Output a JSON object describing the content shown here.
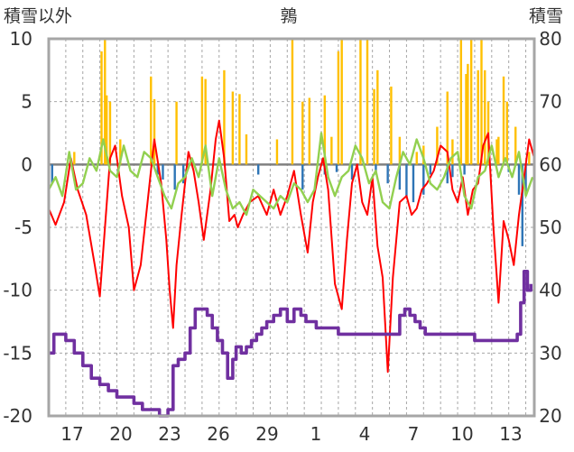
{
  "chart_data": {
    "type": "line",
    "title": "鶉",
    "left_axis": {
      "label": "積雪以外",
      "ticks": [
        10,
        5,
        0,
        -5,
        -10,
        -15,
        -20
      ],
      "ylim": [
        -20,
        10
      ]
    },
    "right_axis": {
      "label": "積雪",
      "ticks": [
        80,
        70,
        60,
        50,
        40,
        30,
        20
      ],
      "ylim": [
        20,
        80
      ]
    },
    "x_tick_labels": [
      "17",
      "20",
      "23",
      "26",
      "29",
      "1",
      "4",
      "7",
      "10",
      "13"
    ],
    "grid": true,
    "colors": {
      "precip_orange": "#FFC000",
      "precip_blue": "#2E75B6",
      "temp_red": "#FF0000",
      "temp_green": "#92D050",
      "snow_purple": "#7030A0",
      "zero_line": "#808080",
      "grid": "#A6A6A6",
      "frame": "#A6A6A6"
    },
    "series": [
      {
        "key": "precip_up",
        "axis": "left",
        "style": "bars-up",
        "x": [
          16.5,
          18.1,
          18.3,
          18.4,
          18.6,
          19.2,
          21.0,
          21.2,
          22.5,
          24.0,
          24.2,
          25.3,
          25.8,
          26.2,
          26.6,
          28.4,
          29.3,
          29.9,
          30.3,
          31.2,
          31.6,
          32.0,
          32.2,
          33.3,
          33.7,
          34.1,
          34.3,
          35.1,
          35.6,
          36.6,
          37.0,
          37.8,
          38.4,
          38.7,
          39.2,
          39.5,
          39.6,
          39.8,
          40.2,
          40.4,
          40.6,
          40.8,
          41.3,
          41.4,
          41.7,
          41.9,
          42.4,
          43.2
        ],
        "y": [
          1.0,
          9.0,
          10.0,
          5.5,
          5.0,
          2.0,
          7.0,
          5.2,
          5.0,
          7.0,
          6.8,
          7.5,
          5.8,
          5.6,
          2.4,
          2.0,
          10.0,
          5.0,
          5.3,
          5.5,
          2.2,
          9.0,
          10.0,
          10.0,
          10.0,
          6.0,
          7.5,
          6.2,
          2.2,
          1.0,
          1.5,
          3.0,
          5.8,
          2.0,
          10.0,
          7.2,
          8.0,
          10.0,
          7.5,
          10.0,
          7.5,
          5.0,
          2.0,
          2.2,
          7.0,
          5.0,
          3.0,
          1.0
        ]
      },
      {
        "key": "precip_down",
        "axis": "left",
        "style": "bars-down",
        "x": [
          15.2,
          21.4,
          21.7,
          22.4,
          22.9,
          27.3,
          29.9,
          31.2,
          31.9,
          32.8,
          34.2,
          34.9,
          35.6,
          36.0,
          36.4,
          37.0,
          37.4,
          38.4,
          38.7,
          39.4,
          42.0,
          42.6,
          42.8,
          43.0
        ],
        "y": [
          -1.5,
          -0.8,
          -1.2,
          -2.0,
          -1.5,
          -0.8,
          -2.0,
          -0.8,
          -0.6,
          -1.2,
          -0.8,
          -1.5,
          -2.0,
          -2.6,
          -3.0,
          -2.4,
          -0.8,
          -1.5,
          -1.0,
          -0.8,
          -0.6,
          -2.4,
          -6.5,
          -2.4
        ]
      },
      {
        "key": "temp_red",
        "axis": "left",
        "style": "line",
        "x": [
          15.0,
          15.4,
          15.9,
          16.3,
          16.7,
          17.2,
          17.7,
          18.0,
          18.3,
          18.6,
          18.9,
          19.3,
          19.7,
          20.0,
          20.4,
          20.8,
          21.2,
          21.6,
          21.9,
          22.1,
          22.3,
          22.5,
          22.8,
          23.2,
          23.5,
          23.8,
          24.1,
          24.5,
          24.8,
          25.0,
          25.3,
          25.6,
          25.9,
          26.1,
          26.4,
          26.8,
          27.3,
          27.8,
          28.2,
          28.6,
          29.0,
          29.4,
          29.8,
          30.2,
          30.5,
          30.8,
          31.1,
          31.4,
          31.8,
          32.2,
          32.5,
          32.8,
          33.1,
          33.4,
          33.7,
          34.0,
          34.3,
          34.6,
          34.9,
          35.2,
          35.6,
          36.0,
          36.3,
          36.6,
          36.9,
          37.2,
          37.6,
          38.0,
          38.4,
          38.7,
          39.0,
          39.3,
          39.6,
          39.9,
          40.2,
          40.5,
          40.8,
          41.1,
          41.4,
          41.7,
          42.0,
          42.3,
          42.6,
          42.9,
          43.2,
          43.5
        ],
        "y": [
          -3.5,
          -4.8,
          -3.0,
          0.5,
          -2.0,
          -4.0,
          -8.0,
          -10.5,
          -5.0,
          0.5,
          1.5,
          -2.5,
          -5.0,
          -10.0,
          -8.0,
          -3.0,
          2.0,
          -1.5,
          -6.0,
          -10.0,
          -13.0,
          -8.0,
          -4.0,
          1.0,
          -0.5,
          -3.0,
          -6.0,
          -2.0,
          2.0,
          3.5,
          0.5,
          -4.5,
          -4.0,
          -5.0,
          -4.0,
          -3.0,
          -2.5,
          -4.0,
          -2.0,
          -4.0,
          -2.5,
          -0.5,
          -4.0,
          -7.0,
          -3.0,
          -1.0,
          0.5,
          -2.0,
          -9.5,
          -11.5,
          -6.0,
          -1.5,
          0.0,
          -3.0,
          -4.0,
          -1.0,
          -6.5,
          -9.0,
          -16.5,
          -9.0,
          -3.0,
          -2.5,
          -4.0,
          -3.5,
          -2.0,
          -1.5,
          -0.5,
          1.5,
          1.0,
          -2.0,
          -3.0,
          -1.0,
          -4.0,
          -2.0,
          -1.5,
          1.5,
          2.5,
          -5.0,
          -11.0,
          -4.5,
          -6.0,
          -8.0,
          -4.0,
          -1.0,
          2.0,
          0.5
        ]
      },
      {
        "key": "temp_green",
        "axis": "left",
        "style": "line",
        "x": [
          15.0,
          15.4,
          15.8,
          16.2,
          16.6,
          17.0,
          17.4,
          17.8,
          18.2,
          18.6,
          19.0,
          19.4,
          19.8,
          20.2,
          20.6,
          21.0,
          21.4,
          21.8,
          22.2,
          22.6,
          23.0,
          23.4,
          23.8,
          24.2,
          24.6,
          25.0,
          25.4,
          25.8,
          26.2,
          26.6,
          27.0,
          27.4,
          27.8,
          28.2,
          28.6,
          29.0,
          29.4,
          29.8,
          30.2,
          30.6,
          31.0,
          31.4,
          31.8,
          32.2,
          32.6,
          33.0,
          33.4,
          33.8,
          34.2,
          34.6,
          35.0,
          35.4,
          35.8,
          36.2,
          36.6,
          37.0,
          37.4,
          37.8,
          38.2,
          38.6,
          39.0,
          39.4,
          39.8,
          40.2,
          40.6,
          41.0,
          41.4,
          41.8,
          42.2,
          42.6,
          43.0,
          43.4
        ],
        "y": [
          -2.0,
          -1.0,
          -2.5,
          1.0,
          -2.0,
          -1.5,
          0.5,
          -0.5,
          2.0,
          -0.5,
          -1.0,
          1.5,
          -0.5,
          -1.0,
          1.0,
          0.5,
          -1.0,
          -2.5,
          -3.5,
          -1.5,
          -1.0,
          0.5,
          -1.0,
          1.5,
          -2.5,
          0.5,
          -2.0,
          -3.5,
          -3.0,
          -4.0,
          -2.0,
          -2.5,
          -3.0,
          -3.5,
          -2.5,
          -3.0,
          -1.5,
          -2.0,
          -3.0,
          -2.0,
          2.5,
          -1.0,
          -2.5,
          -1.0,
          -0.5,
          1.5,
          0.5,
          -1.5,
          -0.5,
          -3.0,
          -3.5,
          -1.0,
          1.0,
          0.0,
          2.0,
          0.5,
          -1.5,
          -2.0,
          -1.0,
          0.5,
          1.0,
          -2.5,
          -3.5,
          -1.0,
          -0.5,
          1.5,
          -1.0,
          0.5,
          -1.0,
          1.0,
          -2.5,
          -1.0
        ]
      },
      {
        "key": "snow_depth",
        "axis": "right",
        "style": "line",
        "x": [
          15.0,
          15.3,
          16.0,
          16.5,
          17.0,
          17.5,
          18.0,
          18.5,
          19.0,
          19.5,
          20.0,
          20.5,
          21.0,
          21.5,
          22.0,
          22.3,
          22.6,
          23.0,
          23.3,
          23.6,
          24.0,
          24.3,
          24.6,
          24.9,
          25.2,
          25.5,
          25.8,
          26.0,
          26.3,
          26.6,
          26.9,
          27.2,
          27.5,
          27.8,
          28.2,
          28.6,
          29.0,
          29.4,
          29.8,
          30.1,
          30.4,
          30.7,
          31.0,
          31.3,
          31.6,
          32.0,
          32.5,
          33.0,
          33.5,
          34.0,
          34.5,
          35.0,
          35.3,
          35.6,
          35.9,
          36.2,
          36.5,
          36.8,
          37.1,
          37.4,
          37.7,
          38.0,
          38.4,
          38.8,
          39.2,
          39.6,
          40.0,
          40.5,
          41.0,
          41.5,
          42.0,
          42.5,
          42.7,
          42.9,
          43.1,
          43.3
        ],
        "y": [
          30.0,
          33.0,
          32.0,
          30.0,
          28.0,
          26.0,
          25.0,
          24.0,
          23.0,
          23.0,
          22.0,
          21.0,
          21.0,
          20.0,
          21.0,
          28.0,
          29.0,
          30.0,
          34.0,
          37.0,
          37.0,
          36.0,
          34.0,
          32.0,
          30.0,
          26.0,
          29.0,
          31.0,
          30.0,
          31.0,
          32.0,
          33.0,
          34.0,
          35.0,
          36.0,
          37.0,
          35.0,
          37.0,
          36.0,
          35.0,
          35.0,
          34.0,
          34.0,
          34.0,
          34.0,
          33.0,
          33.0,
          33.0,
          33.0,
          33.0,
          33.0,
          33.0,
          33.0,
          36.0,
          37.0,
          36.0,
          35.0,
          34.0,
          33.0,
          33.0,
          33.0,
          33.0,
          33.0,
          33.0,
          33.0,
          33.0,
          32.0,
          32.0,
          32.0,
          32.0,
          32.0,
          33.0,
          38.0,
          43.0,
          40.0,
          41.0
        ]
      }
    ],
    "x_range": [
      15,
      43.5
    ]
  }
}
